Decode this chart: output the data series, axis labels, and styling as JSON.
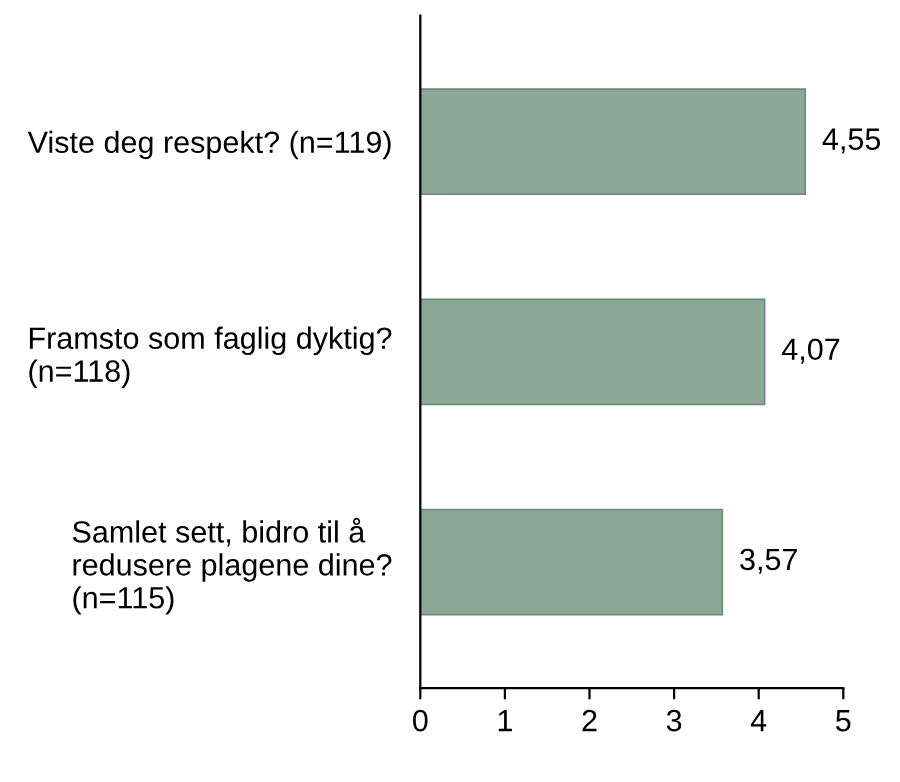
{
  "chart_data": {
    "type": "bar",
    "orientation": "horizontal",
    "categories": [
      "Viste deg respekt? (n=119)",
      "Framsto som faglig dyktig?\n(n=118)",
      "Samlet sett, bidro til å\nredusere plagene dine?\n(n=115)"
    ],
    "values": [
      4.55,
      4.07,
      3.57
    ],
    "value_labels": [
      "4,55",
      "4,07",
      "3,57"
    ],
    "color": "#8ea898",
    "xlim": [
      0,
      5
    ],
    "xticks": [
      0,
      1,
      2,
      3,
      4,
      5
    ],
    "grid": false
  }
}
